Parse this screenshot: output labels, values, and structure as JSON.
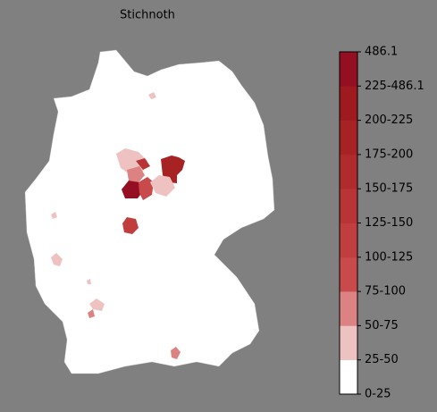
{
  "title": "Stichnoth",
  "legend": {
    "labels": [
      "0-25",
      "25-50",
      "50-75",
      "75-100",
      "100-125",
      "125-150",
      "150-175",
      "175-200",
      "200-225",
      "225-486.1",
      "486.1"
    ],
    "colors": [
      "#ffffff",
      "#efc2c2",
      "#dc8282",
      "#c94a4a",
      "#c13e3e",
      "#b93434",
      "#b02b2b",
      "#a72323",
      "#9e1a1f",
      "#940f22"
    ]
  }
}
